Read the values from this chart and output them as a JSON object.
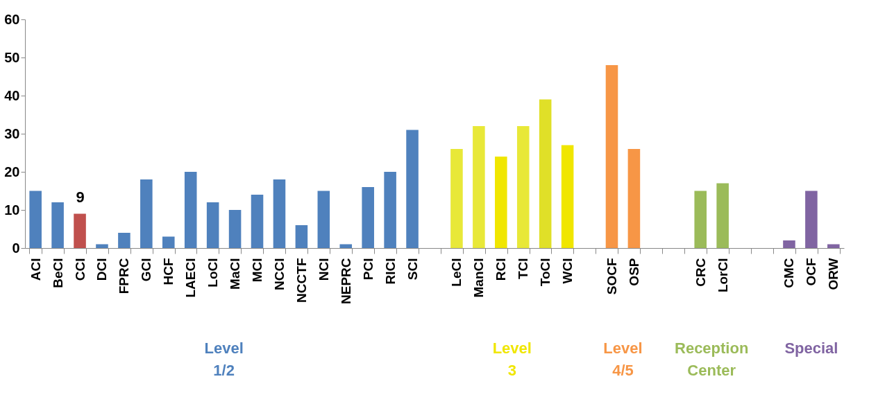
{
  "chart_data": {
    "type": "bar",
    "categories": [
      "ACI",
      "BeCI",
      "CCI",
      "DCI",
      "FPRC",
      "GCI",
      "HCF",
      "LAECI",
      "LoCI",
      "MaCI",
      "MCI",
      "NCCI",
      "NCCTF",
      "NCI",
      "NEPRC",
      "PCI",
      "RICI",
      "SCI",
      null,
      "LeCI",
      "ManCI",
      "RCI",
      "TCI",
      "ToCI",
      "WCI",
      null,
      "SOCF",
      "OSP",
      null,
      null,
      "CRC",
      "LorCI",
      null,
      null,
      "CMC",
      "OCF",
      "ORW"
    ],
    "values": [
      15,
      12,
      9,
      1,
      4,
      18,
      3,
      20,
      12,
      10,
      14,
      18,
      6,
      15,
      1,
      16,
      20,
      31,
      null,
      26,
      32,
      24,
      32,
      39,
      27,
      null,
      48,
      26,
      null,
      null,
      15,
      17,
      null,
      null,
      2,
      15,
      1
    ],
    "colors": [
      "#4f81bd",
      "#4f81bd",
      "#c0504d",
      "#4f81bd",
      "#4f81bd",
      "#4f81bd",
      "#4f81bd",
      "#4f81bd",
      "#4f81bd",
      "#4f81bd",
      "#4f81bd",
      "#4f81bd",
      "#4f81bd",
      "#4f81bd",
      "#4f81bd",
      "#4f81bd",
      "#4f81bd",
      "#4f81bd",
      null,
      "#e8e838",
      "#e8e838",
      "#f0e600",
      "#e8e838",
      "#e0e028",
      "#f0e600",
      null,
      "#f79646",
      "#f79646",
      null,
      null,
      "#9bbb59",
      "#9bbb59",
      null,
      null,
      "#8064a2",
      "#8064a2",
      "#8064a2"
    ],
    "value_labels": [
      null,
      null,
      "9",
      null,
      null,
      null,
      null,
      null,
      null,
      null,
      null,
      null,
      null,
      null,
      null,
      null,
      null,
      null,
      null,
      null,
      null,
      null,
      null,
      null,
      null,
      null,
      null,
      null,
      null,
      null,
      null,
      null,
      null,
      null,
      null,
      null,
      null
    ],
    "ylim": [
      0,
      60
    ],
    "yticks": [
      0,
      10,
      20,
      30,
      40,
      50,
      60
    ],
    "grid": false,
    "annotations": [
      "Level\n1/2",
      "Level\n3",
      "Level\n4/5",
      "Reception\nCenter",
      "Special"
    ]
  }
}
